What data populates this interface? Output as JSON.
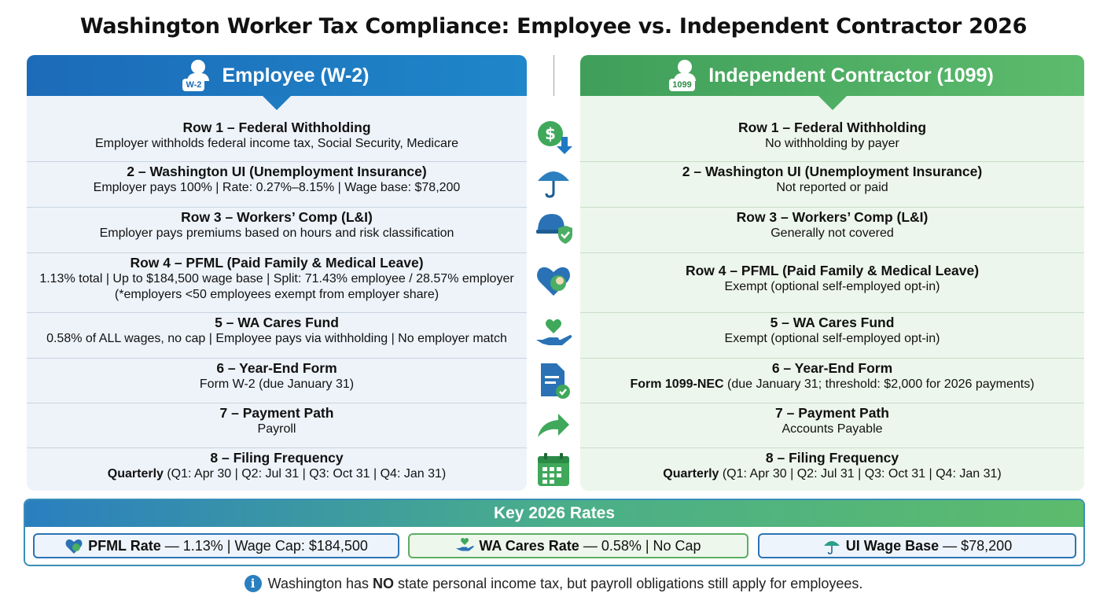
{
  "title": "Washington Worker Tax Compliance: Employee vs. Independent Contractor 2026",
  "employee": {
    "header": "Employee (W-2)",
    "badge": "W-2",
    "rows": [
      {
        "title": "Row 1 – Federal Withholding",
        "desc": "Employer withholds federal income tax, Social Security, Medicare"
      },
      {
        "title": "2 – Washington UI (Unemployment Insurance)",
        "desc": "Employer pays 100% | Rate: 0.27%–8.15% | Wage base: $78,200"
      },
      {
        "title": "Row 3 – Workers’ Comp (L&I)",
        "desc": "Employer pays premiums based on hours and risk classification"
      },
      {
        "title": "Row 4 – PFML (Paid Family & Medical Leave)",
        "desc": "1.13% total | Up to $184,500 wage base | Split: 71.43% employee / 28.57% employer",
        "desc2": "(*employers <50 employees exempt from employer share)"
      },
      {
        "title": "5 – WA Cares Fund",
        "desc": "0.58% of ALL wages, no cap | Employee pays via withholding | No employer match"
      },
      {
        "title": "6 – Year-End Form",
        "desc": "Form W-2 (due January 31)"
      },
      {
        "title": "7 – Payment Path",
        "desc": "Payroll"
      },
      {
        "title": "8 – Filing Frequency",
        "desc_bold": "Quarterly",
        "desc": " (Q1: Apr 30 | Q2: Jul 31 | Q3: Oct 31 | Q4: Jan 31)"
      }
    ]
  },
  "contractor": {
    "header": "Independent Contractor (1099)",
    "badge": "1099",
    "rows": [
      {
        "title": "Row 1 – Federal Withholding",
        "desc": "No withholding by payer"
      },
      {
        "title": "2 – Washington UI (Unemployment Insurance)",
        "desc": "Not reported or paid"
      },
      {
        "title": "Row 3 – Workers’ Comp (L&I)",
        "desc": "Generally not covered"
      },
      {
        "title": "Row 4 – PFML (Paid Family & Medical Leave)",
        "desc": "Exempt (optional self-employed opt-in)"
      },
      {
        "title": "5 – WA Cares Fund",
        "desc": "Exempt (optional self-employed opt-in)"
      },
      {
        "title": "6 – Year-End Form",
        "desc_bold": "Form 1099-NEC",
        "desc": " (due January 31; threshold: $2,000 for 2026 payments)"
      },
      {
        "title": "7 – Payment Path",
        "desc": "Accounts Payable"
      },
      {
        "title": "8 – Filing Frequency",
        "desc_bold": "Quarterly",
        "desc": " (Q1: Apr 30 | Q2: Jul 31 | Q3: Oct 31 | Q4: Jan 31)"
      }
    ]
  },
  "icons": [
    "dollar-withholding-icon",
    "umbrella-icon",
    "hard-hat-shield-icon",
    "heart-baby-icon",
    "hand-heart-icon",
    "document-check-icon",
    "arrow-right-icon",
    "calendar-icon"
  ],
  "key_rates": {
    "title": "Key 2026 Rates",
    "chips": [
      {
        "label": "PFML Rate",
        "value": "— 1.13% | Wage Cap: $184,500"
      },
      {
        "label": "WA Cares Rate",
        "value": "— 0.58% | No Cap"
      },
      {
        "label": "UI Wage Base",
        "value": "— $78,200"
      }
    ]
  },
  "note": {
    "pre": "Washington has ",
    "bold": "NO",
    "post": " state personal income tax, but payroll obligations still apply for employees."
  },
  "colors": {
    "employee_blue": "#1c6bb8",
    "contractor_green": "#4eae63"
  }
}
